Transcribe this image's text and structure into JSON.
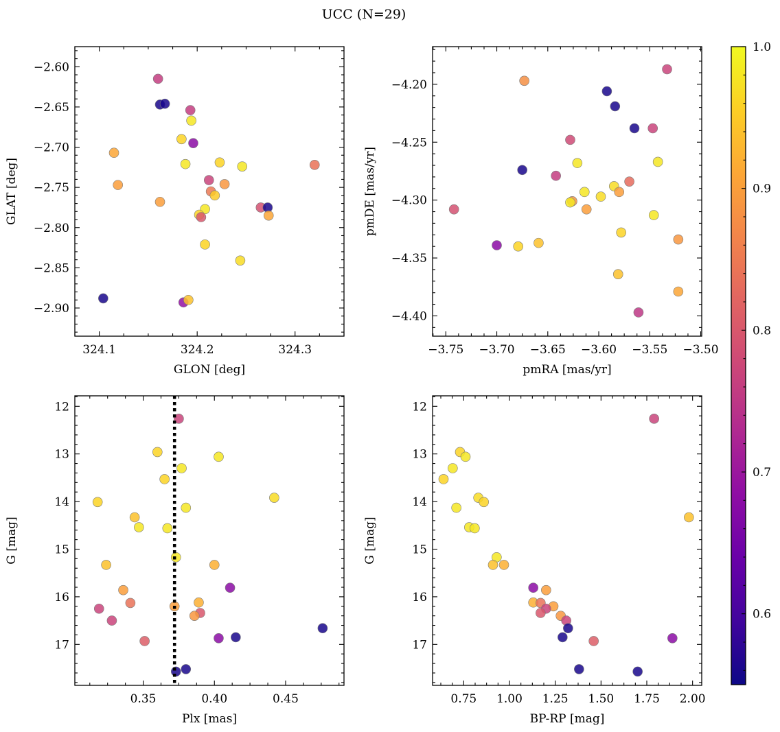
{
  "title": "UCC (N=29)",
  "colorbar": {
    "min": 0.55,
    "max": 1.0,
    "ticks": [
      0.6,
      0.7,
      0.8,
      0.9,
      1.0
    ],
    "tick_labels": [
      "0.6",
      "0.7",
      "0.8",
      "0.9",
      "1.0"
    ],
    "colormap": "plasma"
  },
  "chart_data": [
    {
      "type": "scatter",
      "id": "glon-glat",
      "xlabel": "GLON [deg]",
      "ylabel": "GLAT [deg]",
      "xlim": [
        324.075,
        324.35
      ],
      "ylim": [
        -2.935,
        -2.575
      ],
      "y_inverted": false,
      "xticks": [
        324.1,
        324.2,
        324.3
      ],
      "xtick_labels": [
        "324.1",
        "324.2",
        "324.3"
      ],
      "yticks": [
        -2.6,
        -2.65,
        -2.7,
        -2.75,
        -2.8,
        -2.85,
        -2.9
      ],
      "ytick_labels": [
        "−2.60",
        "−2.65",
        "−2.70",
        "−2.75",
        "−2.80",
        "−2.85",
        "−2.90"
      ],
      "points": [
        {
          "x": 324.16,
          "y": -2.615,
          "c": 0.76
        },
        {
          "x": 324.162,
          "y": -2.647,
          "c": 0.56
        },
        {
          "x": 324.167,
          "y": -2.646,
          "c": 0.56
        },
        {
          "x": 324.193,
          "y": -2.654,
          "c": 0.76
        },
        {
          "x": 324.194,
          "y": -2.667,
          "c": 0.98
        },
        {
          "x": 324.196,
          "y": -2.695,
          "c": 0.68
        },
        {
          "x": 324.184,
          "y": -2.69,
          "c": 0.96
        },
        {
          "x": 324.115,
          "y": -2.707,
          "c": 0.91
        },
        {
          "x": 324.188,
          "y": -2.721,
          "c": 0.98
        },
        {
          "x": 324.223,
          "y": -2.719,
          "c": 0.96
        },
        {
          "x": 324.246,
          "y": -2.724,
          "c": 0.98
        },
        {
          "x": 324.32,
          "y": -2.722,
          "c": 0.84
        },
        {
          "x": 324.212,
          "y": -2.741,
          "c": 0.77
        },
        {
          "x": 324.119,
          "y": -2.747,
          "c": 0.9
        },
        {
          "x": 324.228,
          "y": -2.746,
          "c": 0.89
        },
        {
          "x": 324.214,
          "y": -2.755,
          "c": 0.85
        },
        {
          "x": 324.218,
          "y": -2.76,
          "c": 0.95
        },
        {
          "x": 324.162,
          "y": -2.768,
          "c": 0.9
        },
        {
          "x": 324.265,
          "y": -2.775,
          "c": 0.79
        },
        {
          "x": 324.272,
          "y": -2.775,
          "c": 0.56
        },
        {
          "x": 324.208,
          "y": -2.777,
          "c": 0.98
        },
        {
          "x": 324.202,
          "y": -2.784,
          "c": 0.96
        },
        {
          "x": 324.204,
          "y": -2.787,
          "c": 0.8
        },
        {
          "x": 324.273,
          "y": -2.785,
          "c": 0.91
        },
        {
          "x": 324.208,
          "y": -2.821,
          "c": 0.96
        },
        {
          "x": 324.244,
          "y": -2.841,
          "c": 0.97
        },
        {
          "x": 324.104,
          "y": -2.888,
          "c": 0.56
        },
        {
          "x": 324.186,
          "y": -2.893,
          "c": 0.69
        },
        {
          "x": 324.191,
          "y": -2.89,
          "c": 0.94
        }
      ]
    },
    {
      "type": "scatter",
      "id": "pmra-pmde",
      "xlabel": "pmRA [mas/yr]",
      "ylabel": "pmDE [mas/yr]",
      "xlim": [
        -3.763,
        -3.499
      ],
      "ylim": [
        -4.4175,
        -4.1675
      ],
      "y_inverted": false,
      "xticks": [
        -3.75,
        -3.7,
        -3.65,
        -3.6,
        -3.55,
        -3.5
      ],
      "xtick_labels": [
        "−3.75",
        "−3.70",
        "−3.65",
        "−3.60",
        "−3.55",
        "−3.50"
      ],
      "yticks": [
        -4.2,
        -4.25,
        -4.3,
        -4.35,
        -4.4
      ],
      "ytick_labels": [
        "−4.20",
        "−4.25",
        "−4.30",
        "−4.35",
        "−4.40"
      ],
      "points": [
        {
          "x": -3.533,
          "y": -4.187,
          "c": 0.77
        },
        {
          "x": -3.673,
          "y": -4.197,
          "c": 0.88
        },
        {
          "x": -3.592,
          "y": -4.206,
          "c": 0.56
        },
        {
          "x": -3.584,
          "y": -4.219,
          "c": 0.56
        },
        {
          "x": -3.565,
          "y": -4.238,
          "c": 0.56
        },
        {
          "x": -3.547,
          "y": -4.238,
          "c": 0.77
        },
        {
          "x": -3.628,
          "y": -4.248,
          "c": 0.78
        },
        {
          "x": -3.621,
          "y": -4.268,
          "c": 0.98
        },
        {
          "x": -3.542,
          "y": -4.267,
          "c": 0.98
        },
        {
          "x": -3.675,
          "y": -4.274,
          "c": 0.56
        },
        {
          "x": -3.642,
          "y": -4.279,
          "c": 0.76
        },
        {
          "x": -3.57,
          "y": -4.284,
          "c": 0.83
        },
        {
          "x": -3.585,
          "y": -4.288,
          "c": 0.97
        },
        {
          "x": -3.614,
          "y": -4.293,
          "c": 0.98
        },
        {
          "x": -3.58,
          "y": -4.293,
          "c": 0.9
        },
        {
          "x": -3.598,
          "y": -4.297,
          "c": 0.97
        },
        {
          "x": -3.626,
          "y": -4.301,
          "c": 0.89
        },
        {
          "x": -3.628,
          "y": -4.302,
          "c": 0.98
        },
        {
          "x": -3.742,
          "y": -4.308,
          "c": 0.79
        },
        {
          "x": -3.612,
          "y": -4.308,
          "c": 0.9
        },
        {
          "x": -3.546,
          "y": -4.313,
          "c": 0.98
        },
        {
          "x": -3.578,
          "y": -4.328,
          "c": 0.96
        },
        {
          "x": -3.522,
          "y": -4.334,
          "c": 0.89
        },
        {
          "x": -3.659,
          "y": -4.337,
          "c": 0.94
        },
        {
          "x": -3.7,
          "y": -4.339,
          "c": 0.68
        },
        {
          "x": -3.679,
          "y": -4.34,
          "c": 0.96
        },
        {
          "x": -3.581,
          "y": -4.364,
          "c": 0.94
        },
        {
          "x": -3.522,
          "y": -4.379,
          "c": 0.91
        },
        {
          "x": -3.561,
          "y": -4.397,
          "c": 0.75
        }
      ]
    },
    {
      "type": "scatter",
      "id": "plx-g",
      "xlabel": "Plx [mas]",
      "ylabel": "G [mag]",
      "xlim": [
        0.302,
        0.491
      ],
      "ylim": [
        11.78,
        17.86
      ],
      "y_inverted": true,
      "vline": {
        "x": 0.372,
        "style": "dotted"
      },
      "xticks": [
        0.35,
        0.4,
        0.45
      ],
      "xtick_labels": [
        "0.35",
        "0.40",
        "0.45"
      ],
      "yticks": [
        12,
        13,
        14,
        15,
        16,
        17
      ],
      "ytick_labels": [
        "12",
        "13",
        "14",
        "15",
        "16",
        "17"
      ],
      "points": [
        {
          "x": 0.375,
          "y": 12.26,
          "c": 0.77
        },
        {
          "x": 0.36,
          "y": 12.96,
          "c": 0.96
        },
        {
          "x": 0.403,
          "y": 13.06,
          "c": 0.98
        },
        {
          "x": 0.377,
          "y": 13.3,
          "c": 0.98
        },
        {
          "x": 0.365,
          "y": 13.53,
          "c": 0.96
        },
        {
          "x": 0.442,
          "y": 13.92,
          "c": 0.97
        },
        {
          "x": 0.318,
          "y": 14.01,
          "c": 0.96
        },
        {
          "x": 0.38,
          "y": 14.13,
          "c": 0.98
        },
        {
          "x": 0.344,
          "y": 14.33,
          "c": 0.94
        },
        {
          "x": 0.347,
          "y": 14.54,
          "c": 0.98
        },
        {
          "x": 0.367,
          "y": 14.56,
          "c": 0.98
        },
        {
          "x": 0.373,
          "y": 15.17,
          "c": 0.98
        },
        {
          "x": 0.324,
          "y": 15.33,
          "c": 0.94
        },
        {
          "x": 0.4,
          "y": 15.33,
          "c": 0.92
        },
        {
          "x": 0.411,
          "y": 15.81,
          "c": 0.68
        },
        {
          "x": 0.336,
          "y": 15.86,
          "c": 0.9
        },
        {
          "x": 0.389,
          "y": 16.12,
          "c": 0.92
        },
        {
          "x": 0.341,
          "y": 16.13,
          "c": 0.84
        },
        {
          "x": 0.372,
          "y": 16.2,
          "c": 0.9
        },
        {
          "x": 0.319,
          "y": 16.25,
          "c": 0.77
        },
        {
          "x": 0.39,
          "y": 16.34,
          "c": 0.8
        },
        {
          "x": 0.386,
          "y": 16.4,
          "c": 0.89
        },
        {
          "x": 0.328,
          "y": 16.5,
          "c": 0.77
        },
        {
          "x": 0.476,
          "y": 16.66,
          "c": 0.56
        },
        {
          "x": 0.415,
          "y": 16.85,
          "c": 0.56
        },
        {
          "x": 0.403,
          "y": 16.87,
          "c": 0.68
        },
        {
          "x": 0.351,
          "y": 16.93,
          "c": 0.81
        },
        {
          "x": 0.38,
          "y": 17.52,
          "c": 0.56
        },
        {
          "x": 0.373,
          "y": 17.57,
          "c": 0.56
        }
      ]
    },
    {
      "type": "scatter",
      "id": "bprp-g",
      "xlabel": "BP-RP [mag]",
      "ylabel": "G [mag]",
      "xlim": [
        0.58,
        2.05
      ],
      "ylim": [
        11.78,
        17.86
      ],
      "y_inverted": true,
      "xticks": [
        0.75,
        1.0,
        1.25,
        1.5,
        1.75,
        2.0
      ],
      "xtick_labels": [
        "0.75",
        "1.00",
        "1.25",
        "1.50",
        "1.75",
        "2.00"
      ],
      "yticks": [
        12,
        13,
        14,
        15,
        16,
        17
      ],
      "ytick_labels": [
        "12",
        "13",
        "14",
        "15",
        "16",
        "17"
      ],
      "points": [
        {
          "x": 1.79,
          "y": 12.26,
          "c": 0.77
        },
        {
          "x": 0.73,
          "y": 12.96,
          "c": 0.96
        },
        {
          "x": 0.76,
          "y": 13.06,
          "c": 0.98
        },
        {
          "x": 0.69,
          "y": 13.3,
          "c": 0.98
        },
        {
          "x": 0.64,
          "y": 13.53,
          "c": 0.96
        },
        {
          "x": 0.83,
          "y": 13.92,
          "c": 0.97
        },
        {
          "x": 0.86,
          "y": 14.01,
          "c": 0.96
        },
        {
          "x": 0.71,
          "y": 14.13,
          "c": 0.98
        },
        {
          "x": 1.98,
          "y": 14.33,
          "c": 0.94
        },
        {
          "x": 0.78,
          "y": 14.54,
          "c": 0.98
        },
        {
          "x": 0.81,
          "y": 14.56,
          "c": 0.98
        },
        {
          "x": 0.93,
          "y": 15.17,
          "c": 0.98
        },
        {
          "x": 0.91,
          "y": 15.33,
          "c": 0.94
        },
        {
          "x": 0.97,
          "y": 15.33,
          "c": 0.92
        },
        {
          "x": 1.13,
          "y": 15.81,
          "c": 0.68
        },
        {
          "x": 1.2,
          "y": 15.86,
          "c": 0.9
        },
        {
          "x": 1.13,
          "y": 16.12,
          "c": 0.92
        },
        {
          "x": 1.17,
          "y": 16.13,
          "c": 0.84
        },
        {
          "x": 1.24,
          "y": 16.2,
          "c": 0.9
        },
        {
          "x": 1.2,
          "y": 16.25,
          "c": 0.77
        },
        {
          "x": 1.17,
          "y": 16.34,
          "c": 0.8
        },
        {
          "x": 1.28,
          "y": 16.4,
          "c": 0.89
        },
        {
          "x": 1.31,
          "y": 16.5,
          "c": 0.77
        },
        {
          "x": 1.32,
          "y": 16.66,
          "c": 0.56
        },
        {
          "x": 1.29,
          "y": 16.85,
          "c": 0.56
        },
        {
          "x": 1.89,
          "y": 16.87,
          "c": 0.68
        },
        {
          "x": 1.46,
          "y": 16.93,
          "c": 0.81
        },
        {
          "x": 1.38,
          "y": 17.52,
          "c": 0.56
        },
        {
          "x": 1.7,
          "y": 17.57,
          "c": 0.56
        }
      ]
    }
  ]
}
